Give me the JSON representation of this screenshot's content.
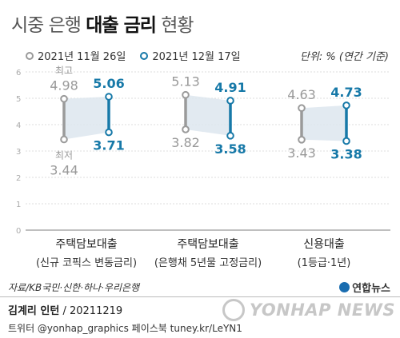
{
  "title": {
    "part1": "시중 은행",
    "part2": "대출 금리",
    "part3": "현황"
  },
  "legend": [
    {
      "label": "2021년 11월 26일",
      "color": "#9a9a9a"
    },
    {
      "label": "2021년 12월 17일",
      "color": "#1779a8"
    }
  ],
  "unit": "단위: % (연간 기준)",
  "source": "자료/KB국민·신한·하나·우리은행",
  "logo_small": "연합뉴스",
  "author": {
    "name": "김계리 인턴",
    "date": "20211219"
  },
  "social": "트위터 @yonhap_graphics  페이스북 tuney.kr/LeYN1",
  "watermark": "YONHAP NEWS",
  "annotations": {
    "high": "최고",
    "low": "최저"
  },
  "colors": {
    "gray": "#9a9a9a",
    "blue": "#1779a8",
    "band": "#dde6ee",
    "grid": "#dddddd"
  },
  "chart_data": {
    "type": "range",
    "ylim": [
      0,
      6
    ],
    "yticks": [
      "0",
      "1",
      "2",
      "3",
      "4",
      "5",
      "6"
    ],
    "grid": true,
    "categories": [
      {
        "name": "주택담보대출",
        "sub": "(신규 코픽스 변동금리)"
      },
      {
        "name": "주택담보대출",
        "sub": "(은행채 5년물 고정금리)"
      },
      {
        "name": "신용대출",
        "sub": "(1등급·1년)"
      }
    ],
    "series": [
      {
        "name": "2021년 11월 26일",
        "high": [
          4.98,
          5.13,
          4.63
        ],
        "low": [
          3.44,
          3.82,
          3.43
        ]
      },
      {
        "name": "2021년 12월 17일",
        "high": [
          5.06,
          4.91,
          4.73
        ],
        "low": [
          3.71,
          3.58,
          3.38
        ]
      }
    ]
  }
}
